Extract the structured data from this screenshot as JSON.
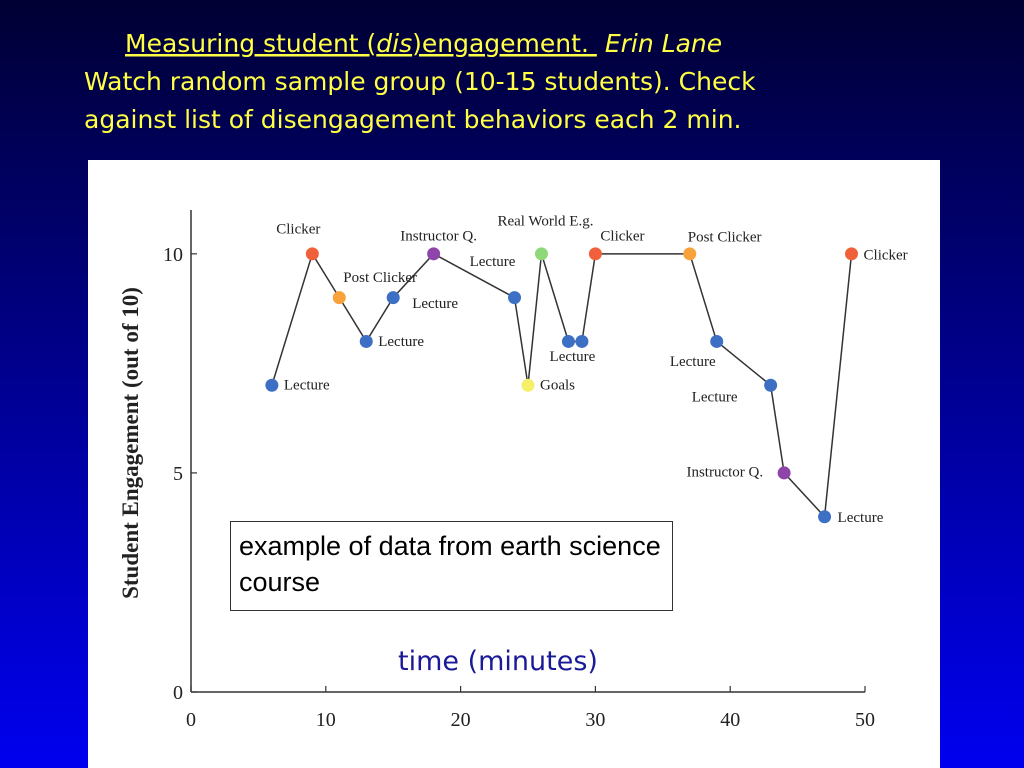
{
  "slide": {
    "title": {
      "lead": "Measuring student  (",
      "italic": "dis",
      "rest": ")engagement. ",
      "author": "Erin  Lane"
    },
    "lines": [
      "Watch random sample group (10-15 students).  Check",
      "against list of disengagement behaviors each 2 min."
    ]
  },
  "chart_data": {
    "type": "line",
    "xlabel": "time (minutes)",
    "ylabel": "Student Engagement (out of 10)",
    "annotation": "example of data from earth science course",
    "x": [
      6,
      9,
      11,
      13,
      15,
      18,
      24,
      25,
      26,
      28,
      29,
      30,
      37,
      39,
      43,
      44,
      47,
      49
    ],
    "series": [
      {
        "values": [
          7,
          10,
          9,
          8,
          9,
          10,
          9,
          7,
          10,
          8,
          8,
          10,
          10,
          8,
          7,
          5,
          4,
          10
        ],
        "color": "#333333",
        "point_colors": [
          "#3d6fc4",
          "#f0603a",
          "#f8a23a",
          "#3d6fc4",
          "#3d6fc4",
          "#8e44a8",
          "#3d6fc4",
          "#f5ef6a",
          "#8fd87a",
          "#3d6fc4",
          "#3d6fc4",
          "#f0603a",
          "#f8a23a",
          "#3d6fc4",
          "#3d6fc4",
          "#8e44a8",
          "#3d6fc4",
          "#f0603a"
        ],
        "point_labels": [
          "Lecture",
          "Clicker",
          "Post Clicker",
          "Lecture",
          "Lecture",
          "Instructor Q.",
          "Lecture",
          "Goals",
          "Real World E.g.",
          "Lecture",
          null,
          "Clicker",
          "Post Clicker",
          "Lecture",
          "Lecture",
          "Instructor Q.",
          "Lecture",
          "Clicker"
        ]
      }
    ],
    "xlim": [
      0,
      50
    ],
    "xticks": [
      0,
      10,
      20,
      30,
      40,
      50
    ],
    "ylim": [
      0,
      11
    ],
    "yticks": [
      0,
      5,
      10
    ]
  }
}
